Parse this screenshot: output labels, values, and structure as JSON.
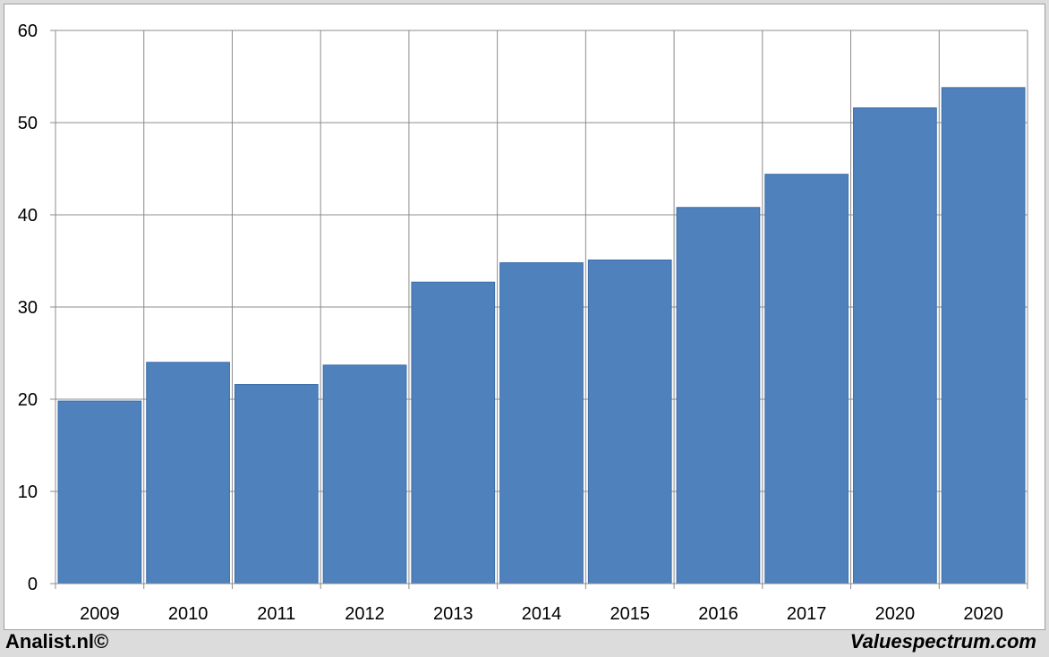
{
  "chart_data": {
    "type": "bar",
    "categories": [
      "2009",
      "2010",
      "2011",
      "2012",
      "2013",
      "2014",
      "2015",
      "2016",
      "2017",
      "2020",
      "2020"
    ],
    "values": [
      19.8,
      24.0,
      21.6,
      23.7,
      32.7,
      34.8,
      35.1,
      40.8,
      44.4,
      51.6,
      53.8
    ],
    "title": "",
    "xlabel": "",
    "ylabel": "",
    "ylim": [
      0,
      60
    ],
    "yticks": [
      0,
      10,
      20,
      30,
      40,
      50,
      60
    ],
    "grid": true,
    "bar_color": "#4f81bd"
  },
  "footer": {
    "left": "Analist.nl©",
    "right": "Valuespectrum.com"
  }
}
